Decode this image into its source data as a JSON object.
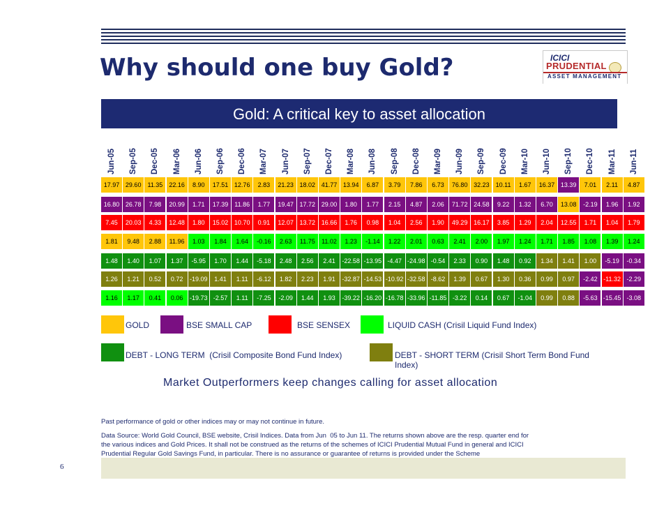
{
  "header": {
    "title": "Why should one buy Gold?"
  },
  "logo": {
    "line1": "ICICI",
    "line2": "PRUDENTIAL",
    "line3": "ASSET MANAGEMENT"
  },
  "banner": "Gold: A critical key to asset allocation",
  "colors": {
    "gold": "#ffc60a",
    "small_cap": "#7a0f82",
    "sensex": "#ff0000",
    "liquid": "#00ff00",
    "long_term": "#109010",
    "short_term": "#7f7f0f"
  },
  "table": {
    "columns": [
      "Jun-05",
      "Sep-05",
      "Dec-05",
      "Mar-06",
      "Jun-06",
      "Sep-06",
      "Dec-06",
      "Mar-07",
      "Jun-07",
      "Sep-07",
      "Dec-07",
      "Mar-08",
      "Jun-08",
      "Sep-08",
      "Dec-08",
      "Mar-09",
      "Jun-09",
      "Sep-09",
      "Dec-09",
      "Mar-10",
      "Jun-10",
      "Sep-10",
      "Dec-10",
      "Mar-11",
      "Jun-11"
    ],
    "rows": [
      [
        "17.97",
        "29.60",
        "11.35",
        "22.16",
        "8.90",
        "17.51",
        "12.76",
        "2.83",
        "21.23",
        "18.02",
        "41.77",
        "13.94",
        "6.87",
        "3.79",
        "7.86",
        "6.73",
        "76.80",
        "32.23",
        "10.11",
        "1.67",
        "16.37",
        "13.39",
        "7.01",
        "2.11",
        "4.87"
      ],
      [
        "16.80",
        "26.78",
        "7.98",
        "20.99",
        "1.71",
        "17.39",
        "11.86",
        "1.77",
        "19.47",
        "17.72",
        "29.00",
        "1.80",
        "1.77",
        "2.15",
        "4.87",
        "2.06",
        "71.72",
        "24.58",
        "9.22",
        "1.32",
        "6.70",
        "13.08",
        "-2.19",
        "1.96",
        "1.92"
      ],
      [
        "7.45",
        "20.03",
        "4.33",
        "12.48",
        "1.80",
        "15.02",
        "10.70",
        "0.91",
        "12.07",
        "13.72",
        "16.66",
        "1.76",
        "0.98",
        "1.04",
        "2.56",
        "1.90",
        "49.29",
        "16.17",
        "3.85",
        "1.29",
        "2.04",
        "12.55",
        "1.71",
        "1.04",
        "1.79"
      ],
      [
        "1.81",
        "9.48",
        "2.88",
        "11.96",
        "1.03",
        "1.84",
        "1.64",
        "-0.16",
        "2.63",
        "11.75",
        "11.02",
        "1.23",
        "-1.14",
        "1.22",
        "2.01",
        "0.63",
        "2.41",
        "2.00",
        "1.97",
        "1.24",
        "1.71",
        "1.85",
        "1.08",
        "1.39",
        "1.24"
      ],
      [
        "1.48",
        "1.40",
        "1.07",
        "1.37",
        "-5.95",
        "1.70",
        "1.44",
        "-5.18",
        "2.48",
        "2.56",
        "2.41",
        "-22.58",
        "-13.95",
        "-4.47",
        "-24.98",
        "-0.54",
        "2.33",
        "0.90",
        "1.48",
        "0.92",
        "1.34",
        "1.41",
        "1.00",
        "-5.19",
        "-0.34"
      ],
      [
        "1.26",
        "1.21",
        "0.52",
        "0.72",
        "-19.09",
        "1.41",
        "1.11",
        "-6.12",
        "1.82",
        "2.23",
        "1.91",
        "-32.87",
        "-14.53",
        "-10.92",
        "-32.58",
        "-8.62",
        "1.39",
        "0.67",
        "1.30",
        "0.36",
        "0.99",
        "0.97",
        "-2.42",
        "-11.32",
        "-2.29"
      ],
      [
        "1.16",
        "1.17",
        "0.41",
        "0.06",
        "-19.73",
        "-2.57",
        "1.11",
        "-7.25",
        "-2.09",
        "1.44",
        "1.93",
        "-39.22",
        "-16.20",
        "-16.78",
        "-33.96",
        "-11.85",
        "-3.22",
        "0.14",
        "0.67",
        "-1.04",
        "0.99",
        "0.88",
        "-5.63",
        "-15.45",
        "-3.08"
      ]
    ],
    "cell_colors": [
      [
        "gold",
        "gold",
        "gold",
        "gold",
        "gold",
        "gold",
        "gold",
        "gold",
        "gold",
        "gold",
        "gold",
        "gold",
        "gold",
        "gold",
        "gold",
        "gold",
        "gold",
        "gold",
        "gold",
        "gold",
        "gold",
        "small_cap",
        "gold",
        "gold",
        "gold"
      ],
      [
        "small_cap",
        "small_cap",
        "small_cap",
        "small_cap",
        "small_cap",
        "small_cap",
        "small_cap",
        "small_cap",
        "small_cap",
        "small_cap",
        "small_cap",
        "small_cap",
        "small_cap",
        "small_cap",
        "small_cap",
        "small_cap",
        "small_cap",
        "small_cap",
        "small_cap",
        "small_cap",
        "small_cap",
        "gold",
        "small_cap",
        "small_cap",
        "small_cap"
      ],
      [
        "sensex",
        "sensex",
        "sensex",
        "sensex",
        "sensex",
        "sensex",
        "sensex",
        "sensex",
        "sensex",
        "sensex",
        "sensex",
        "sensex",
        "sensex",
        "sensex",
        "sensex",
        "sensex",
        "sensex",
        "sensex",
        "sensex",
        "sensex",
        "sensex",
        "sensex",
        "sensex",
        "sensex",
        "sensex"
      ],
      [
        "gold",
        "gold",
        "gold",
        "gold",
        "liquid",
        "liquid",
        "liquid",
        "liquid",
        "liquid",
        "liquid",
        "liquid",
        "liquid",
        "liquid",
        "liquid",
        "liquid",
        "liquid",
        "liquid",
        "liquid",
        "liquid",
        "liquid",
        "liquid",
        "liquid",
        "liquid",
        "liquid",
        "liquid"
      ],
      [
        "long_term",
        "long_term",
        "long_term",
        "long_term",
        "long_term",
        "long_term",
        "long_term",
        "long_term",
        "long_term",
        "long_term",
        "long_term",
        "long_term",
        "long_term",
        "long_term",
        "long_term",
        "long_term",
        "long_term",
        "long_term",
        "long_term",
        "long_term",
        "short_term",
        "short_term",
        "short_term",
        "small_cap",
        "small_cap"
      ],
      [
        "short_term",
        "short_term",
        "short_term",
        "short_term",
        "short_term",
        "short_term",
        "short_term",
        "short_term",
        "short_term",
        "short_term",
        "short_term",
        "short_term",
        "short_term",
        "short_term",
        "short_term",
        "short_term",
        "short_term",
        "short_term",
        "short_term",
        "short_term",
        "short_term",
        "short_term",
        "small_cap",
        "sensex",
        "small_cap"
      ],
      [
        "liquid",
        "liquid",
        "liquid",
        "liquid",
        "long_term",
        "long_term",
        "long_term",
        "long_term",
        "long_term",
        "long_term",
        "long_term",
        "long_term",
        "long_term",
        "long_term",
        "long_term",
        "long_term",
        "long_term",
        "long_term",
        "long_term",
        "long_term",
        "short_term",
        "short_term",
        "small_cap",
        "small_cap",
        "small_cap"
      ]
    ]
  },
  "legend": {
    "gold": "GOLD",
    "small_cap": "BSE SMALL CAP",
    "sensex": "BSE SENSEX",
    "liquid": "LIQUID CASH (Crisil Liquid Fund Index)",
    "long_term": "DEBT - LONG TERM  (Crisil Composite Bond Fund Index)",
    "short_term_1": "DEBT - SHORT TERM (Crisil Short Term Bond Fund",
    "short_term_2": "Index)"
  },
  "tagline": "Market Outperformers keep changes calling for asset allocation",
  "footnote": {
    "line1": "Past performance of gold or other indices may or may not continue in future.",
    "line2": "Data Source: World Gold Council, BSE website, Crisil Indices. Data from Jun  05 to Jun 11. The returns shown above are the resp. quarter end for",
    "line3": "the various indices and Gold Prices. It shall not be construed as the returns of the schemes of ICICI Prudential Mutual Fund in general and ICICI",
    "line4": "Prudential Regular Gold Savings Fund, in particular. There is no assurance or guarantee of returns is provided under the Scheme"
  },
  "page_number": "6"
}
